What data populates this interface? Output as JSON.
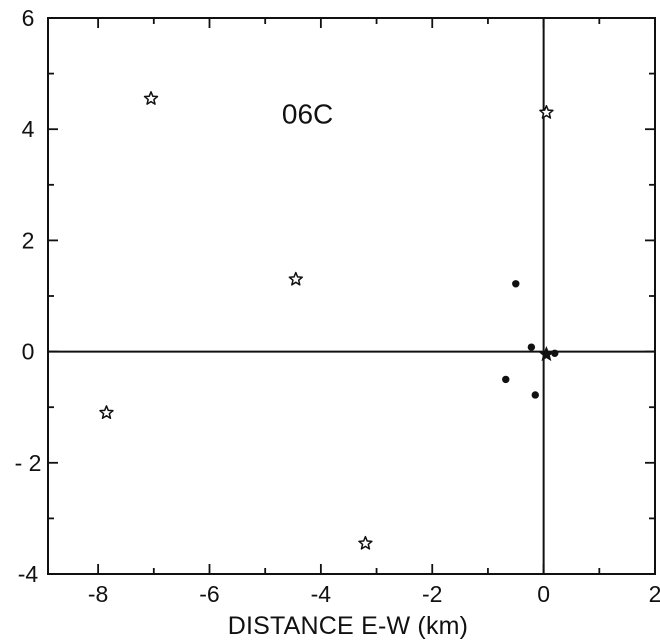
{
  "chart_data": {
    "type": "scatter",
    "title": "",
    "annotation": "06C",
    "xlabel": "DISTANCE  E-W (km)",
    "ylabel": "",
    "xlim": [
      -8.9,
      2
    ],
    "ylim": [
      -4,
      6
    ],
    "xticks": [
      -8,
      -6,
      -4,
      -2,
      0,
      2
    ],
    "yticks": [
      -4,
      -2,
      0,
      2,
      4,
      6
    ],
    "xtick_labels": [
      "-8",
      "-6",
      "-4",
      "-2",
      "0",
      "2"
    ],
    "ytick_labels": [
      "-4",
      "- 2",
      "0",
      "2",
      "4",
      "6"
    ],
    "series": [
      {
        "marker": "star",
        "points": [
          {
            "x": -7.05,
            "y": 4.55
          },
          {
            "x": -4.45,
            "y": 1.3
          },
          {
            "x": -7.85,
            "y": -1.1
          },
          {
            "x": -3.2,
            "y": -3.45
          },
          {
            "x": 0.05,
            "y": 4.3
          }
        ]
      },
      {
        "marker": "filled-star",
        "points": [
          {
            "x": 0.05,
            "y": -0.05
          }
        ]
      },
      {
        "marker": "dot",
        "points": [
          {
            "x": -0.5,
            "y": 1.22
          },
          {
            "x": -0.22,
            "y": 0.08
          },
          {
            "x": 0.2,
            "y": -0.03
          },
          {
            "x": -0.68,
            "y": -0.5
          },
          {
            "x": -0.15,
            "y": -0.78
          }
        ]
      }
    ]
  }
}
